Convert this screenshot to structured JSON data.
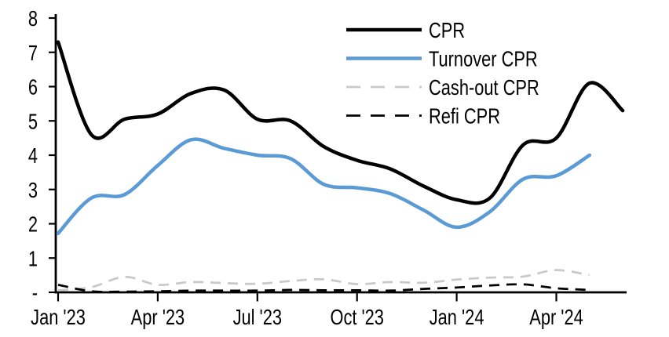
{
  "figure": {
    "background": "#ffffff",
    "axis_color": "#000000",
    "text_color": "#000000"
  },
  "chart_data": {
    "type": "line",
    "title": "",
    "xlabel": "",
    "ylabel": "",
    "ylim": [
      0,
      8
    ],
    "grid": false,
    "legend_position": "top-right",
    "line_style": "smoothed",
    "x": [
      "Jan '23",
      "Feb '23",
      "Mar '23",
      "Apr '23",
      "May '23",
      "Jun '23",
      "Jul '23",
      "Aug '23",
      "Sep '23",
      "Oct '23",
      "Nov '23",
      "Dec '23",
      "Jan '24",
      "Feb '24",
      "Mar '24",
      "Apr '24",
      "May '24",
      "Jun '24"
    ],
    "xtick_labels": [
      "Jan '23",
      "Apr '23",
      "Jul '23",
      "Oct '23",
      "Jan '24",
      "Apr '24"
    ],
    "xtick_indices": [
      0,
      3,
      6,
      9,
      12,
      15
    ],
    "ytick_labels": [
      "8",
      "7",
      "6",
      "5",
      "4",
      "3",
      "2",
      "1",
      "-"
    ],
    "ytick_values": [
      8,
      7,
      6,
      5,
      4,
      3,
      2,
      1,
      0
    ],
    "series": [
      {
        "name": "CPR",
        "color": "#000000",
        "style": "solid",
        "values": [
          7.3,
          4.6,
          5.05,
          5.2,
          5.8,
          5.9,
          5.05,
          5.0,
          4.25,
          3.85,
          3.6,
          3.1,
          2.7,
          2.75,
          4.3,
          4.5,
          6.1,
          5.3
        ]
      },
      {
        "name": "Turnover CPR",
        "color": "#5B9BD5",
        "style": "solid",
        "values": [
          1.72,
          2.75,
          2.85,
          3.7,
          4.45,
          4.2,
          4.0,
          3.9,
          3.15,
          3.05,
          2.88,
          2.4,
          1.9,
          2.35,
          3.3,
          3.4,
          4.0
        ]
      },
      {
        "name": "Cash-out CPR",
        "color": "#C9C9C9",
        "style": "dashed",
        "values": [
          0.06,
          0.15,
          0.45,
          0.22,
          0.3,
          0.27,
          0.25,
          0.33,
          0.38,
          0.24,
          0.3,
          0.28,
          0.37,
          0.43,
          0.46,
          0.65,
          0.5
        ]
      },
      {
        "name": "Refi CPR",
        "color": "#000000",
        "style": "dashed",
        "values": [
          0.22,
          0.03,
          0.02,
          0.03,
          0.05,
          0.05,
          0.05,
          0.07,
          0.06,
          0.06,
          0.05,
          0.1,
          0.14,
          0.2,
          0.23,
          0.12,
          0.07
        ]
      }
    ]
  }
}
